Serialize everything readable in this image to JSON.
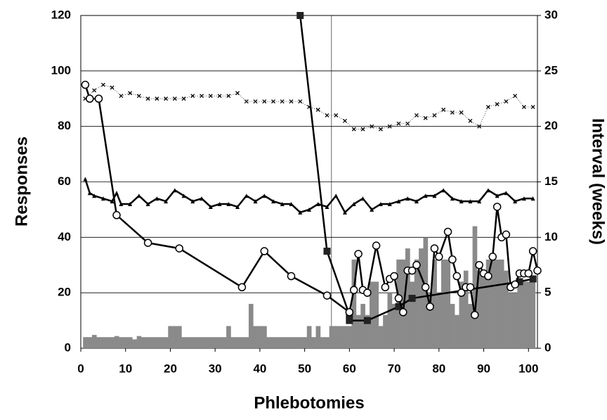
{
  "chart_data": {
    "type": "combo",
    "x_label": "Phlebotomies",
    "y_label": "Responses",
    "y2_label": "Interval (weeks)",
    "xlim": [
      0,
      102
    ],
    "xticks": [
      0,
      10,
      20,
      30,
      40,
      50,
      60,
      70,
      80,
      90,
      100
    ],
    "ylim": [
      0,
      120
    ],
    "yticks": [
      0,
      20,
      40,
      60,
      80,
      100,
      120
    ],
    "y2lim": [
      0,
      30
    ],
    "y2ticks": [
      0,
      5,
      10,
      15,
      20,
      25,
      30
    ],
    "grid": true,
    "series": [
      {
        "type": "bar",
        "axis": "y2",
        "color": "#8a8a8a",
        "x": [
          1,
          2,
          3,
          4,
          5,
          6,
          7,
          8,
          9,
          10,
          11,
          12,
          13,
          14,
          15,
          16,
          17,
          18,
          19,
          20,
          21,
          22,
          23,
          24,
          25,
          26,
          27,
          28,
          29,
          30,
          31,
          32,
          33,
          34,
          35,
          36,
          37,
          38,
          39,
          40,
          41,
          42,
          43,
          44,
          45,
          46,
          47,
          48,
          49,
          50,
          51,
          52,
          53,
          54,
          55,
          56,
          57,
          58,
          59,
          60,
          61,
          62,
          63,
          64,
          65,
          66,
          67,
          68,
          69,
          70,
          71,
          72,
          73,
          74,
          75,
          76,
          77,
          78,
          79,
          80,
          81,
          82,
          83,
          84,
          85,
          86,
          87,
          88,
          89,
          90,
          91,
          92,
          93,
          94,
          95,
          96,
          97,
          98,
          99,
          100,
          101
        ],
        "values": [
          1,
          1,
          1.2,
          1,
          1,
          1,
          1,
          1.1,
          1,
          1,
          1,
          0.8,
          1.1,
          1,
          1,
          1,
          1,
          1,
          1,
          2,
          2,
          2,
          1,
          1,
          1,
          1,
          1,
          1,
          1,
          1,
          1,
          1,
          2,
          1,
          1,
          1,
          1,
          4,
          2,
          2,
          2,
          1,
          1,
          1,
          1,
          1,
          1,
          1,
          1,
          1,
          2,
          1,
          2,
          1,
          1,
          2,
          2,
          2,
          2,
          2,
          8,
          3,
          4,
          3,
          6,
          6,
          2,
          3,
          5,
          4,
          8,
          8,
          9,
          6,
          8,
          9,
          10,
          5,
          8,
          5,
          8,
          8,
          4,
          3,
          6,
          7,
          4,
          11,
          7,
          7,
          8,
          8,
          8,
          8,
          7,
          5,
          5,
          6,
          6,
          6,
          6
        ]
      },
      {
        "type": "line",
        "marker": "x",
        "dotted": true,
        "color": "#000000",
        "x": [
          1,
          3,
          5,
          7,
          9,
          11,
          13,
          15,
          17,
          19,
          21,
          23,
          25,
          27,
          29,
          31,
          33,
          35,
          37,
          39,
          41,
          43,
          45,
          47,
          49,
          51,
          53,
          55,
          57,
          59,
          61,
          63,
          65,
          67,
          69,
          71,
          73,
          75,
          77,
          79,
          81,
          83,
          85,
          87,
          89,
          91,
          93,
          95,
          97,
          99,
          101
        ],
        "values": [
          90,
          93,
          95,
          94,
          91,
          92,
          91,
          90,
          90,
          90,
          90,
          90,
          91,
          91,
          91,
          91,
          91,
          92,
          89,
          89,
          89,
          89,
          89,
          89,
          89,
          87,
          86,
          84,
          84,
          82,
          79,
          79,
          80,
          79,
          80,
          81,
          81,
          84,
          83,
          84,
          86,
          85,
          85,
          82,
          80,
          87,
          88,
          89,
          91,
          87,
          87
        ]
      },
      {
        "type": "line",
        "marker": "triangle",
        "color": "#000000",
        "x": [
          1,
          2,
          3,
          5,
          7,
          8,
          9,
          11,
          13,
          15,
          17,
          19,
          21,
          23,
          25,
          27,
          29,
          31,
          33,
          35,
          37,
          39,
          41,
          43,
          45,
          47,
          49,
          51,
          53,
          55,
          57,
          59,
          61,
          63,
          65,
          67,
          69,
          71,
          73,
          75,
          77,
          79,
          81,
          83,
          85,
          87,
          89,
          91,
          93,
          95,
          97,
          99,
          101
        ],
        "values": [
          61,
          56,
          55,
          54,
          53,
          56,
          52,
          52,
          55,
          52,
          54,
          53,
          57,
          55,
          53,
          54,
          51,
          52,
          52,
          51,
          55,
          53,
          55,
          53,
          52,
          52,
          49,
          50,
          52,
          51,
          55,
          49,
          52,
          54,
          50,
          52,
          52,
          53,
          54,
          53,
          55,
          55,
          57,
          54,
          53,
          53,
          53,
          57,
          55,
          56,
          53,
          54,
          54
        ]
      },
      {
        "type": "line",
        "marker": "square",
        "color": "#000000",
        "x": [
          49,
          55,
          60,
          60,
          64,
          71,
          74,
          98,
          101
        ],
        "values": [
          120,
          35,
          12,
          10,
          10,
          15,
          18,
          24,
          25
        ]
      },
      {
        "type": "line",
        "marker": "circle",
        "color": "#000000",
        "x": [
          1,
          2,
          4,
          8,
          15,
          22,
          36,
          41,
          47,
          55,
          60,
          61,
          62,
          63,
          64,
          66,
          68,
          69,
          70,
          71,
          72,
          73,
          74,
          75,
          77,
          78,
          79,
          80,
          82,
          83,
          84,
          85,
          86,
          87,
          88,
          89,
          90,
          91,
          92,
          93,
          94,
          95,
          96,
          97,
          98,
          99,
          100,
          101,
          102
        ],
        "values": [
          95,
          90,
          90,
          48,
          38,
          36,
          22,
          35,
          26,
          19,
          13,
          21,
          34,
          21,
          20,
          37,
          22,
          25,
          26,
          18,
          13,
          28,
          28,
          30,
          22,
          15,
          36,
          33,
          42,
          32,
          26,
          20,
          22,
          22,
          12,
          30,
          27,
          26,
          33,
          51,
          40,
          41,
          22,
          23,
          27,
          27,
          27,
          35,
          28
        ]
      }
    ]
  }
}
